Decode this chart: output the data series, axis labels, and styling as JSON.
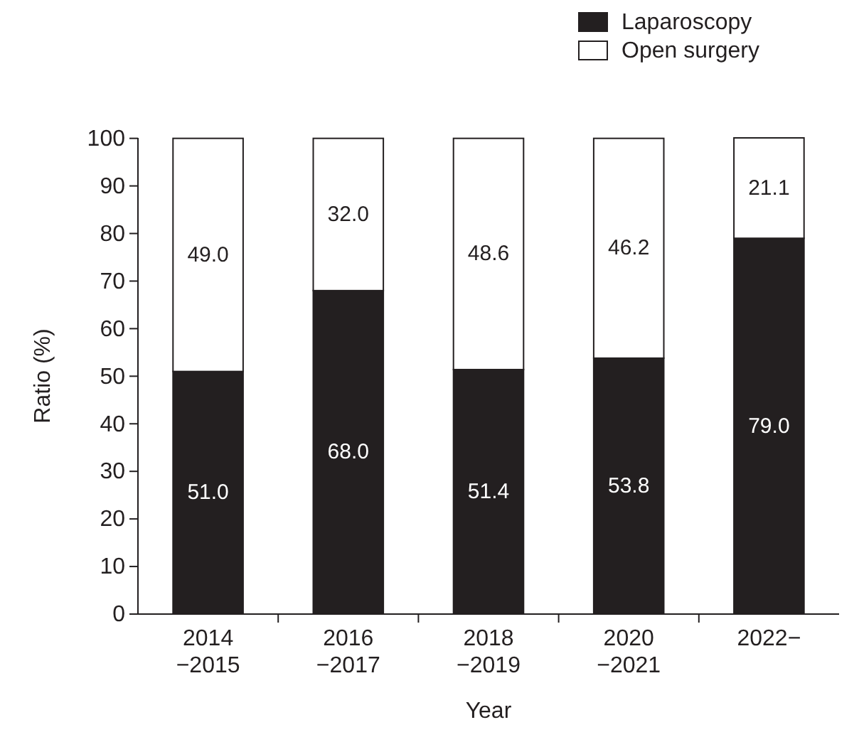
{
  "chart_data": {
    "type": "bar",
    "stacked": true,
    "xlabel": "Year",
    "ylabel": "Ratio (%)",
    "categories": [
      "2014\n−2015",
      "2016\n−2017",
      "2018\n−2019",
      "2020\n−2021",
      "2022−"
    ],
    "series": [
      {
        "name": "Laparoscopy",
        "color": "#231f20",
        "values": [
          51.0,
          68.0,
          51.4,
          53.8,
          79.0
        ],
        "value_labels": [
          "51.0",
          "68.0",
          "51.4",
          "53.8",
          "79.0"
        ]
      },
      {
        "name": "Open surgery",
        "color": "#ffffff",
        "values": [
          49.0,
          32.0,
          48.6,
          46.2,
          21.1
        ],
        "value_labels": [
          "49.0",
          "32.0",
          "48.6",
          "46.2",
          "21.1"
        ]
      }
    ],
    "ylim": [
      0,
      100.1
    ],
    "yticks": [
      0,
      10,
      20,
      30,
      40,
      50,
      60,
      70,
      80,
      90,
      100
    ],
    "legend": "top right",
    "grid": false
  }
}
